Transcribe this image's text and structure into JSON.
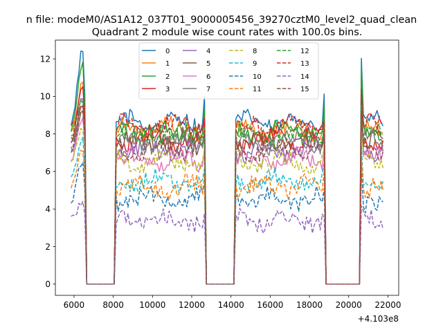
{
  "chart_data": {
    "type": "line",
    "suptitle": "n file: modeM0/AS1A12_037T01_9000005456_39270cztM0_level2_quad_clean",
    "title": "Quadrant 2 module wise count rates with 100.0s bins.",
    "xlabel": "",
    "ylabel": "",
    "x_offset_label": "+4.103e8",
    "xlim": [
      5050,
      22550
    ],
    "ylim": [
      -0.6,
      13.0
    ],
    "x_ticks": [
      6000,
      8000,
      10000,
      12000,
      14000,
      16000,
      18000,
      20000,
      22000
    ],
    "x_tick_labels": [
      "6000",
      "8000",
      "10000",
      "12000",
      "14000",
      "16000",
      "18000",
      "20000",
      "22000"
    ],
    "y_ticks": [
      0,
      2,
      4,
      6,
      8,
      10,
      12
    ],
    "y_tick_labels": [
      "0",
      "2",
      "4",
      "6",
      "8",
      "10",
      "12"
    ],
    "grid": false,
    "legend_position": "top-center",
    "legend_columns": 4,
    "bin_seconds": 100,
    "segments": [
      {
        "start": 5850,
        "end": 6550
      },
      {
        "start": 8150,
        "end": 12650
      },
      {
        "start": 14250,
        "end": 18750
      },
      {
        "start": 20650,
        "end": 21750
      }
    ],
    "gap_value": 0,
    "series": [
      {
        "name": "0",
        "color": "#1f77b4",
        "dash": "solid",
        "level": 8.6,
        "peak": 12.4
      },
      {
        "name": "1",
        "color": "#ff7f0e",
        "dash": "solid",
        "level": 8.2,
        "peak": 10.6
      },
      {
        "name": "2",
        "color": "#2ca02c",
        "dash": "solid",
        "level": 8.1,
        "peak": 11.9
      },
      {
        "name": "3",
        "color": "#d62728",
        "dash": "solid",
        "level": 7.7,
        "peak": 10.7
      },
      {
        "name": "4",
        "color": "#9467bd",
        "dash": "solid",
        "level": 7.1,
        "peak": 9.8
      },
      {
        "name": "5",
        "color": "#8c564b",
        "dash": "solid",
        "level": 7.7,
        "peak": 9.5
      },
      {
        "name": "6",
        "color": "#e377c2",
        "dash": "solid",
        "level": 6.6,
        "peak": 8.8
      },
      {
        "name": "7",
        "color": "#7f7f7f",
        "dash": "solid",
        "level": 7.6,
        "peak": 9.0
      },
      {
        "name": "8",
        "color": "#bcbd22",
        "dash": "dashed",
        "level": 6.5,
        "peak": 8.4
      },
      {
        "name": "9",
        "color": "#17becf",
        "dash": "dashed",
        "level": 5.5,
        "peak": 7.6
      },
      {
        "name": "10",
        "color": "#1f77b4",
        "dash": "dashed",
        "level": 4.5,
        "peak": 6.5
      },
      {
        "name": "11",
        "color": "#ff7f0e",
        "dash": "dashed",
        "level": 5.2,
        "peak": 7.0
      },
      {
        "name": "12",
        "color": "#2ca02c",
        "dash": "dashed",
        "level": 7.9,
        "peak": 9.8
      },
      {
        "name": "13",
        "color": "#d62728",
        "dash": "dashed",
        "level": 8.4,
        "peak": 9.5
      },
      {
        "name": "14",
        "color": "#9467bd",
        "dash": "dashed",
        "level": 3.4,
        "peak": 4.3
      },
      {
        "name": "15",
        "color": "#8c564b",
        "dash": "dashed",
        "level": 7.2,
        "peak": 9.2
      }
    ]
  }
}
